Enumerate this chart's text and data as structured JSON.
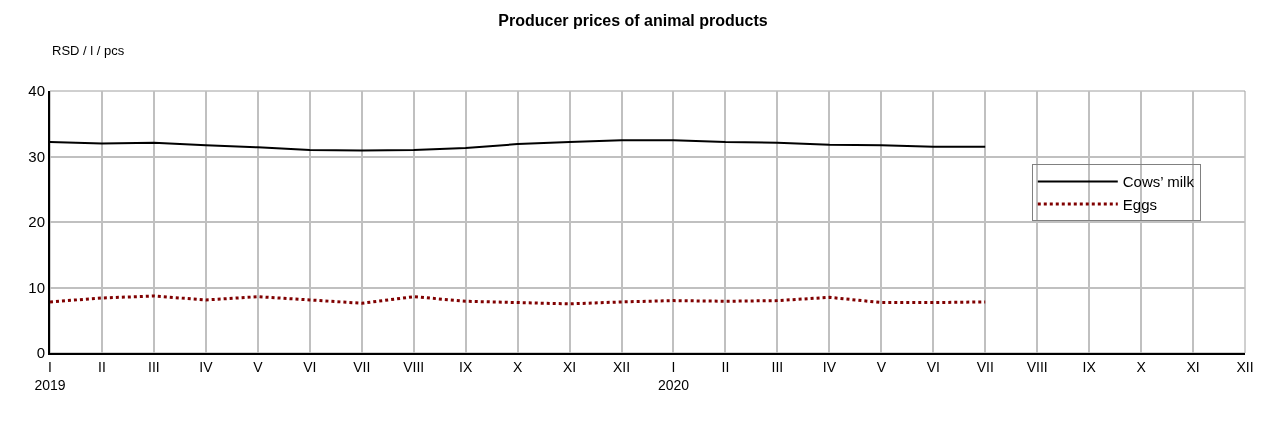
{
  "chart_data": {
    "type": "line",
    "title": "Producer prices of animal products",
    "ylabel": "RSD / l / pcs",
    "categories": [
      "I\n2019",
      "II",
      "III",
      "IV",
      "V",
      "VI",
      "VII",
      "VIII",
      "IX",
      "X",
      "XI",
      "XII",
      "I\n2020",
      "II",
      "III",
      "IV",
      "V",
      "VI",
      "VII",
      "VIII",
      "IX",
      "X",
      "XI",
      "XII"
    ],
    "series": [
      {
        "name": "Cows’ milk",
        "color": "#000000",
        "line_style": "solid",
        "values": [
          32.2,
          32.0,
          32.1,
          31.7,
          31.4,
          31.0,
          30.9,
          31.0,
          31.3,
          31.9,
          32.2,
          32.5,
          32.5,
          32.2,
          32.1,
          31.8,
          31.7,
          31.5,
          31.5,
          null,
          null,
          null,
          null,
          null
        ]
      },
      {
        "name": "Eggs",
        "color": "#800000",
        "line_style": "dotted",
        "values": [
          7.8,
          8.4,
          8.7,
          8.1,
          8.6,
          8.1,
          7.6,
          8.6,
          7.9,
          7.7,
          7.5,
          7.8,
          8.0,
          7.9,
          8.0,
          8.5,
          7.7,
          7.7,
          7.8,
          null,
          null,
          null,
          null,
          null
        ]
      }
    ],
    "ylim": [
      0,
      40
    ],
    "yticks": [
      0,
      10,
      20,
      30,
      40
    ],
    "grid": true,
    "legend": "right",
    "marker": "none"
  }
}
